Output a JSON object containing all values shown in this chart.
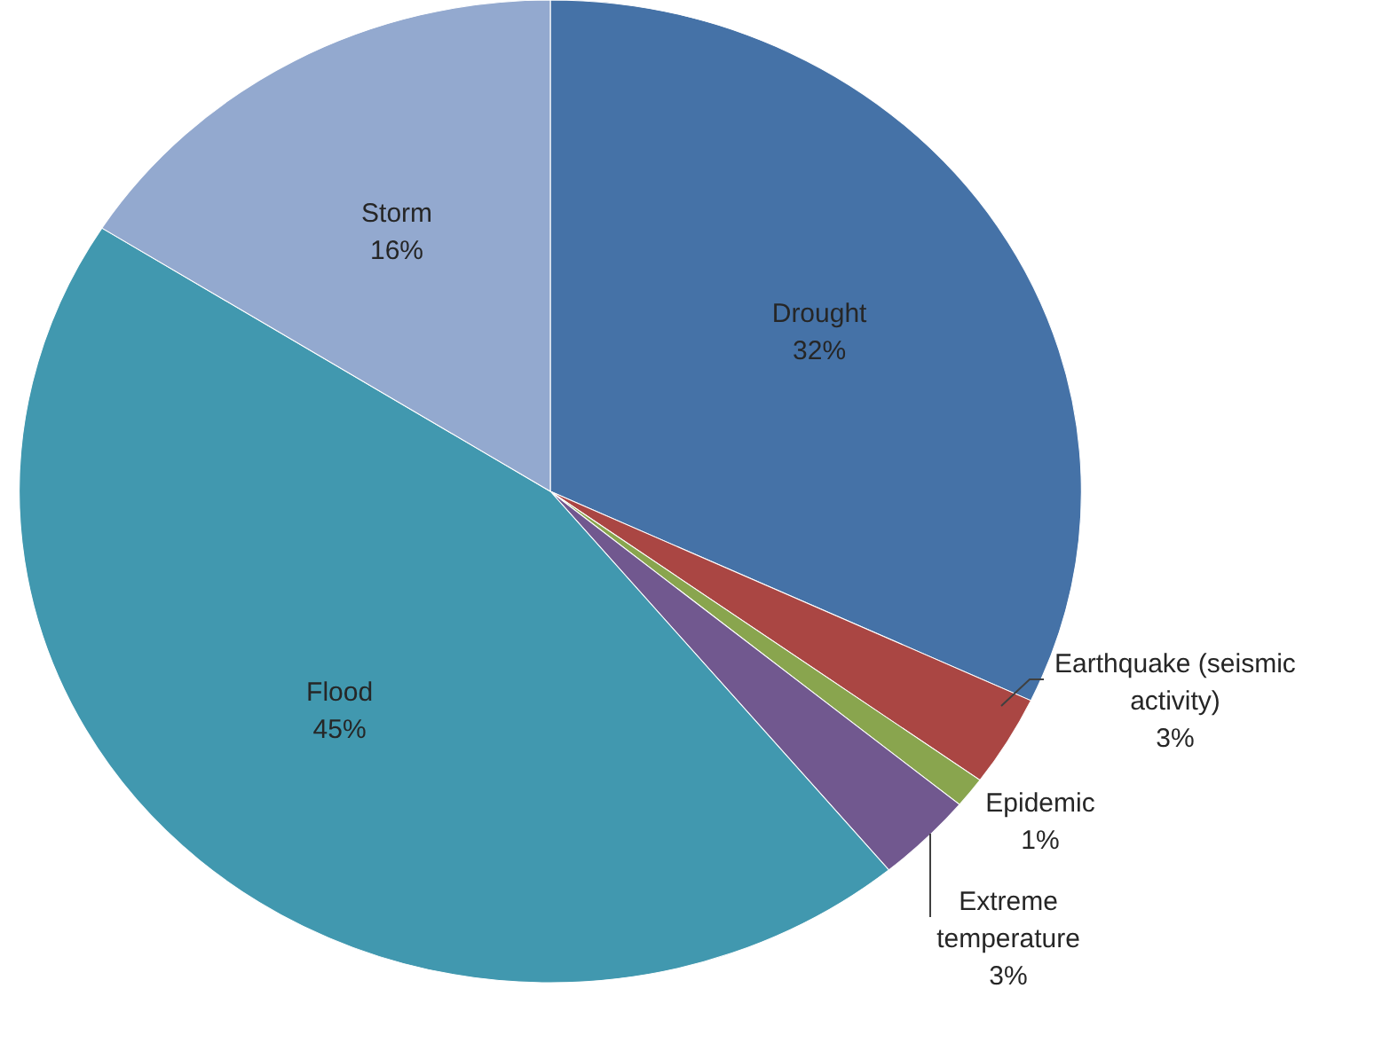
{
  "chart_data": {
    "type": "pie",
    "categories": [
      "Drought",
      "Earthquake (seismic activity)",
      "Epidemic",
      "Extreme temperature",
      "Flood",
      "Storm"
    ],
    "values": [
      32,
      3,
      1,
      3,
      45,
      16
    ],
    "colors": [
      "#4572a7",
      "#aa4643",
      "#89a54e",
      "#71588f",
      "#4198af",
      "#93a9cf"
    ],
    "value_labels": [
      "32%",
      "3%",
      "1%",
      "3%",
      "45%",
      "16%"
    ]
  }
}
